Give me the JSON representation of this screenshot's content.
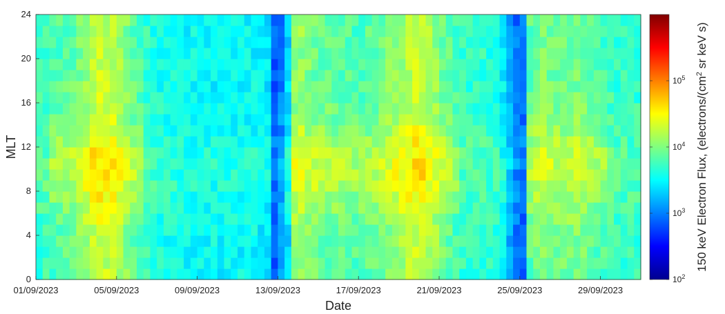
{
  "chart_data": {
    "type": "heatmap",
    "title": "",
    "xlabel": "Date",
    "ylabel": "MLT",
    "colorbar_label_parts": [
      "150 keV ",
      "Electron Flux, (electrons/(cm",
      "2",
      " sr keV s)"
    ],
    "x_start": "01/09/2023",
    "x_end": "01/10/2023",
    "x_ticks": [
      "01/09/2023",
      "05/09/2023",
      "09/09/2023",
      "13/09/2023",
      "17/09/2023",
      "21/09/2023",
      "25/09/2023",
      "29/09/2023"
    ],
    "x_tick_days": [
      0,
      4,
      8,
      12,
      16,
      20,
      24,
      28
    ],
    "ylim": [
      0,
      24
    ],
    "y_ticks": [
      "0",
      "4",
      "8",
      "12",
      "16",
      "20",
      "24"
    ],
    "y_tick_values": [
      0,
      4,
      8,
      12,
      16,
      20,
      24
    ],
    "colorbar": {
      "scale": "log",
      "range": [
        100,
        1000000
      ],
      "tick_values": [
        100,
        1000,
        10000,
        100000
      ],
      "tick_labels": [
        {
          "base": "10",
          "exp": "2"
        },
        {
          "base": "10",
          "exp": "3"
        },
        {
          "base": "10",
          "exp": "4"
        },
        {
          "base": "10",
          "exp": "5"
        }
      ],
      "colormap": "jet"
    },
    "profile_note_days": [
      0,
      1,
      2,
      3,
      4,
      5,
      6,
      7,
      8,
      9,
      10,
      11,
      11.5,
      12,
      12.5,
      13,
      14,
      16,
      17,
      18,
      19,
      20,
      21,
      22,
      23,
      23.9,
      24.3,
      25,
      26,
      27,
      28,
      29,
      30
    ],
    "typical_log10_flux_by_day": [
      3.7,
      3.8,
      3.9,
      4.3,
      4.2,
      3.8,
      3.6,
      3.55,
      3.5,
      3.5,
      3.5,
      3.5,
      3.4,
      2.6,
      3.9,
      4.1,
      3.9,
      3.8,
      3.9,
      4.1,
      4.3,
      4.0,
      3.7,
      3.7,
      3.6,
      2.9,
      3.8,
      4.0,
      3.9,
      4.0,
      3.8,
      3.7,
      3.7
    ],
    "grid": false,
    "legend": "colorbar-right"
  }
}
